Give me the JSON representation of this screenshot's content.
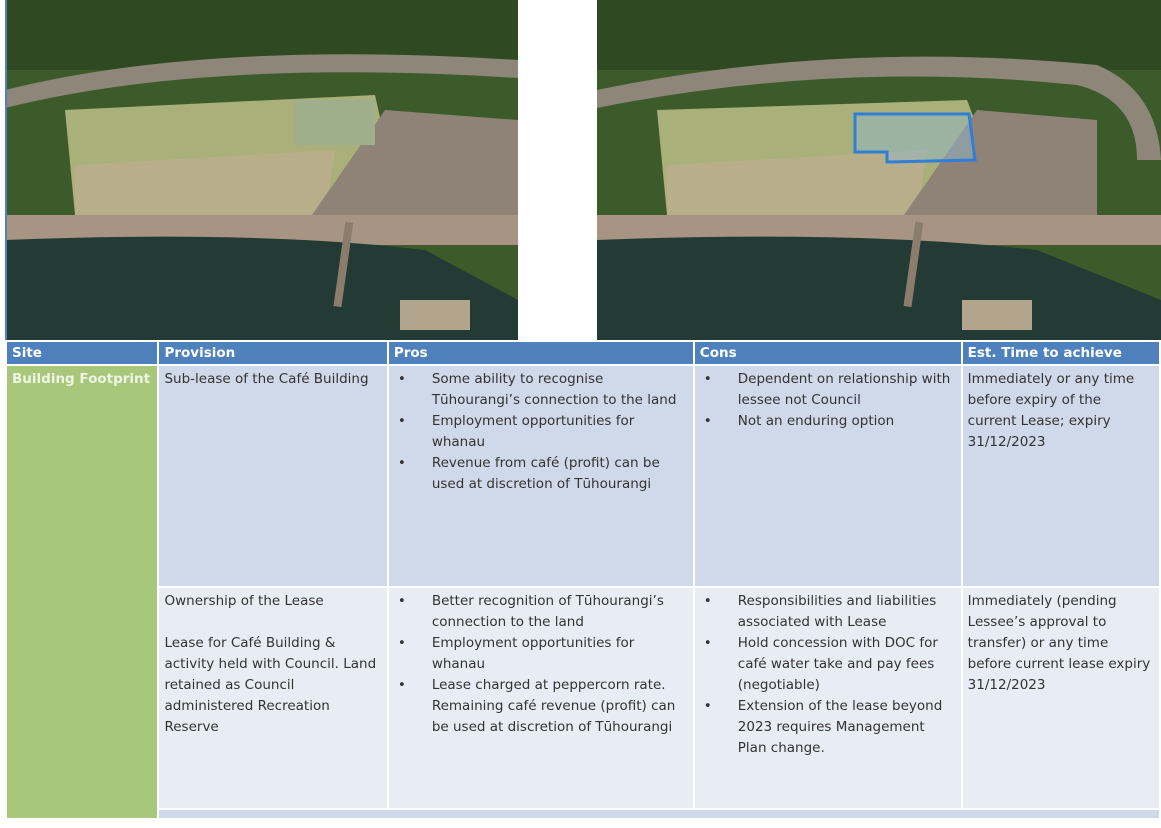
{
  "table": {
    "headers": [
      "Site",
      "Provision",
      "Pros",
      "Cons",
      "Est. Time to achieve"
    ],
    "site": "Building Footprint",
    "rows": [
      {
        "provision": [
          "Sub-lease of the Café Building"
        ],
        "pros": [
          "Some ability to recognise Tūhourangi’s connection to the land",
          "Employment opportunities for whanau",
          "Revenue from café (profit) can be used at discretion of Tūhourangi"
        ],
        "cons": [
          "Dependent on relationship with lessee not Council",
          "Not an enduring option"
        ],
        "time": "Immediately or any time before expiry of the current Lease; expiry 31/12/2023"
      },
      {
        "provision": [
          "Ownership of the Lease",
          "Lease for Café Building & activity held with Council. Land retained as Council administered Recreation Reserve"
        ],
        "pros": [
          "Better recognition of Tūhourangi’s connection to the land",
          "Employment opportunities for whanau",
          "Lease charged at peppercorn rate. Remaining café revenue (profit) can be used at discretion of Tūhourangi"
        ],
        "cons": [
          "Responsibilities and liabilities associated with Lease",
          "Hold concession with DOC for café water take and pay fees (negotiable)",
          "Extension of the lease beyond 2023 requires Management Plan change."
        ],
        "time": "Immediately (pending Lessee’s approval to transfer) or any time before current lease expiry 31/12/2023"
      }
    ]
  }
}
